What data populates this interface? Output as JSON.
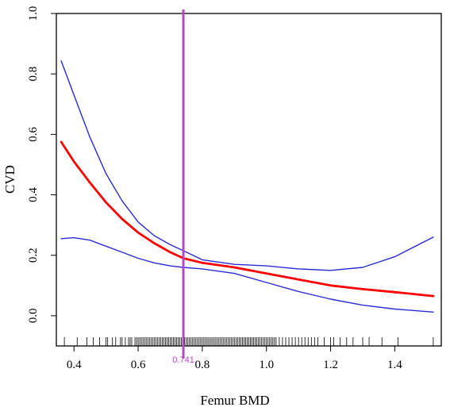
{
  "chart_data": {
    "type": "line",
    "xlabel": "Femur BMD",
    "ylabel": "CVD",
    "xlim": [
      0.345,
      1.545
    ],
    "ylim": [
      -0.1,
      1.0
    ],
    "x_ticks": [
      0.4,
      0.6,
      0.8,
      1.0,
      1.2,
      1.4
    ],
    "x_tick_labels": [
      "0.4",
      "0.6",
      "0.8",
      "1.0",
      "1.2",
      "1.4"
    ],
    "y_ticks": [
      0.0,
      0.2,
      0.4,
      0.6,
      0.8,
      1.0
    ],
    "y_tick_labels": [
      "0.0",
      "0.2",
      "0.4",
      "0.6",
      "0.8",
      "1.0"
    ],
    "grid": false,
    "series": [
      {
        "color": "#ff0000",
        "role": "estimate",
        "x": [
          0.36,
          0.4,
          0.45,
          0.5,
          0.55,
          0.6,
          0.65,
          0.7,
          0.741,
          0.8,
          0.9,
          1.0,
          1.1,
          1.2,
          1.3,
          1.4,
          1.52
        ],
        "y": [
          0.575,
          0.51,
          0.44,
          0.375,
          0.32,
          0.275,
          0.24,
          0.21,
          0.19,
          0.175,
          0.16,
          0.14,
          0.12,
          0.1,
          0.088,
          0.078,
          0.065
        ]
      },
      {
        "color": "#2b2bd6",
        "role": "upper",
        "x": [
          0.36,
          0.4,
          0.45,
          0.5,
          0.55,
          0.6,
          0.65,
          0.7,
          0.741,
          0.8,
          0.9,
          1.0,
          1.1,
          1.2,
          1.3,
          1.4,
          1.52
        ],
        "y": [
          0.843,
          0.73,
          0.59,
          0.47,
          0.38,
          0.31,
          0.265,
          0.235,
          0.215,
          0.185,
          0.17,
          0.165,
          0.155,
          0.15,
          0.16,
          0.195,
          0.26
        ]
      },
      {
        "color": "#2b2bd6",
        "role": "lower",
        "x": [
          0.36,
          0.4,
          0.45,
          0.5,
          0.55,
          0.6,
          0.65,
          0.7,
          0.741,
          0.8,
          0.9,
          1.0,
          1.1,
          1.2,
          1.3,
          1.4,
          1.52
        ],
        "y": [
          0.255,
          0.258,
          0.25,
          0.23,
          0.21,
          0.19,
          0.175,
          0.165,
          0.16,
          0.155,
          0.14,
          0.11,
          0.08,
          0.055,
          0.035,
          0.022,
          0.012
        ]
      }
    ],
    "vline": {
      "x": 0.741,
      "label": "0.741",
      "color": "#bb44cc"
    },
    "rug": {
      "color": "#000000",
      "x": [
        0.37,
        0.41,
        0.44,
        0.46,
        0.48,
        0.5,
        0.505,
        0.52,
        0.53,
        0.545,
        0.55,
        0.56,
        0.57,
        0.575,
        0.58,
        0.59,
        0.595,
        0.6,
        0.605,
        0.61,
        0.615,
        0.62,
        0.625,
        0.63,
        0.635,
        0.64,
        0.645,
        0.65,
        0.655,
        0.66,
        0.665,
        0.67,
        0.675,
        0.68,
        0.685,
        0.69,
        0.695,
        0.7,
        0.705,
        0.71,
        0.715,
        0.72,
        0.725,
        0.73,
        0.735,
        0.745,
        0.75,
        0.755,
        0.76,
        0.765,
        0.77,
        0.775,
        0.78,
        0.785,
        0.79,
        0.795,
        0.8,
        0.805,
        0.81,
        0.815,
        0.82,
        0.825,
        0.83,
        0.835,
        0.84,
        0.845,
        0.85,
        0.855,
        0.86,
        0.865,
        0.87,
        0.875,
        0.88,
        0.885,
        0.89,
        0.895,
        0.9,
        0.905,
        0.91,
        0.915,
        0.92,
        0.925,
        0.93,
        0.935,
        0.94,
        0.945,
        0.95,
        0.955,
        0.96,
        0.965,
        0.97,
        0.975,
        0.98,
        0.985,
        0.99,
        0.995,
        1.0,
        1.005,
        1.01,
        1.015,
        1.02,
        1.025,
        1.03,
        1.04,
        1.05,
        1.06,
        1.07,
        1.08,
        1.09,
        1.1,
        1.11,
        1.12,
        1.13,
        1.14,
        1.15,
        1.16,
        1.18,
        1.2,
        1.21,
        1.23,
        1.25,
        1.27,
        1.3,
        1.32,
        1.36,
        1.41,
        1.52
      ]
    }
  }
}
